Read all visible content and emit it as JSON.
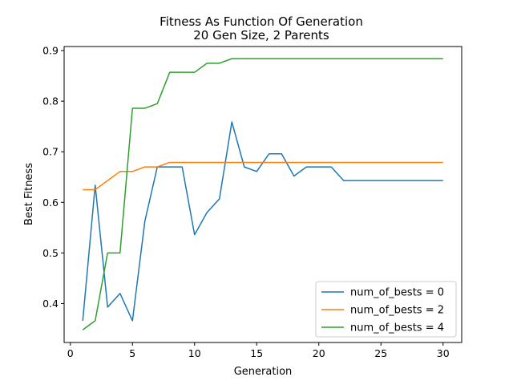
{
  "chart_data": {
    "type": "line",
    "title_line1": "Fitness As Function Of Generation",
    "title_line2": "20 Gen Size, 2 Parents",
    "xlabel": "Generation",
    "ylabel": "Best Fitness",
    "xlim": [
      -0.5,
      31.5
    ],
    "ylim": [
      0.323,
      0.908
    ],
    "xticks": [
      0,
      5,
      10,
      15,
      20,
      25,
      30
    ],
    "yticks": [
      0.4,
      0.5,
      0.6,
      0.7,
      0.8,
      0.9
    ],
    "xtick_labels": [
      "0",
      "5",
      "10",
      "15",
      "20",
      "25",
      "30"
    ],
    "ytick_labels": [
      "0.4",
      "0.5",
      "0.6",
      "0.7",
      "0.8",
      "0.9"
    ],
    "grid": false,
    "legend_position": "lower right",
    "x": [
      1,
      2,
      3,
      4,
      5,
      6,
      7,
      8,
      9,
      10,
      11,
      12,
      13,
      14,
      15,
      16,
      17,
      18,
      19,
      20,
      21,
      22,
      23,
      24,
      25,
      26,
      27,
      28,
      29,
      30
    ],
    "series": [
      {
        "name": "num_of_bests = 0",
        "color": "#1f77b4",
        "values": [
          0.366,
          0.634,
          0.393,
          0.42,
          0.366,
          0.563,
          0.67,
          0.67,
          0.67,
          0.536,
          0.58,
          0.607,
          0.759,
          0.67,
          0.661,
          0.696,
          0.696,
          0.652,
          0.67,
          0.67,
          0.67,
          0.643,
          0.643,
          0.643,
          0.643,
          0.643,
          0.643,
          0.643,
          0.643,
          0.643
        ]
      },
      {
        "name": "num_of_bests = 2",
        "color": "#ff7f0e",
        "values": [
          0.625,
          0.625,
          0.643,
          0.661,
          0.661,
          0.67,
          0.67,
          0.679,
          0.679,
          0.679,
          0.679,
          0.679,
          0.679,
          0.679,
          0.679,
          0.679,
          0.679,
          0.679,
          0.679,
          0.679,
          0.679,
          0.679,
          0.679,
          0.679,
          0.679,
          0.679,
          0.679,
          0.679,
          0.679,
          0.679
        ]
      },
      {
        "name": "num_of_bests = 4",
        "color": "#2ca02c",
        "values": [
          0.348,
          0.366,
          0.5,
          0.5,
          0.786,
          0.786,
          0.795,
          0.857,
          0.857,
          0.857,
          0.875,
          0.875,
          0.884,
          0.884,
          0.884,
          0.884,
          0.884,
          0.884,
          0.884,
          0.884,
          0.884,
          0.884,
          0.884,
          0.884,
          0.884,
          0.884,
          0.884,
          0.884,
          0.884,
          0.884
        ]
      }
    ]
  }
}
